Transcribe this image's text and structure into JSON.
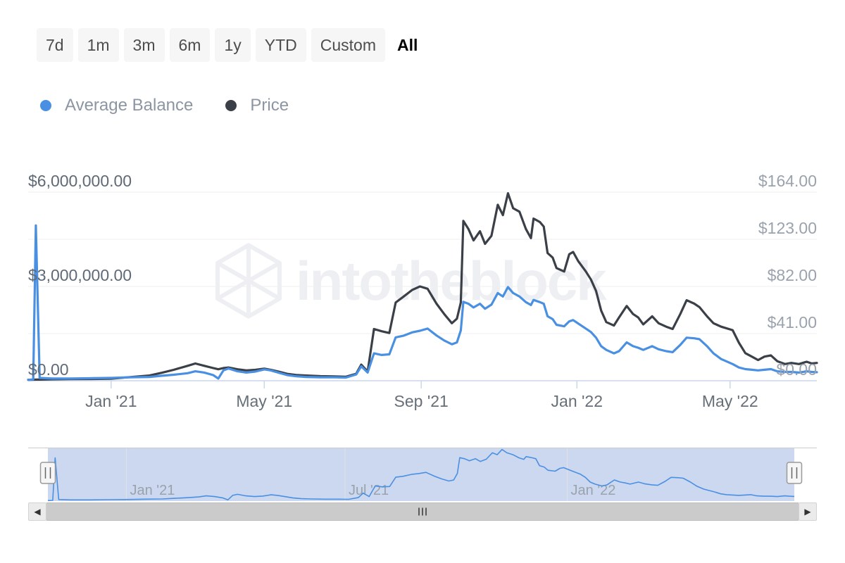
{
  "toolbar": {
    "ranges": [
      {
        "label": "7d",
        "active": false
      },
      {
        "label": "1m",
        "active": false
      },
      {
        "label": "3m",
        "active": false
      },
      {
        "label": "6m",
        "active": false
      },
      {
        "label": "1y",
        "active": false
      },
      {
        "label": "YTD",
        "active": false
      },
      {
        "label": "Custom",
        "active": false
      },
      {
        "label": "All",
        "active": true
      }
    ]
  },
  "legend": {
    "items": [
      {
        "label": "Average Balance",
        "color": "#4a90e2"
      },
      {
        "label": "Price",
        "color": "#3b4048"
      }
    ]
  },
  "watermark": {
    "text": "intotheblock"
  },
  "scrollbar": {
    "left_arrow": "◀",
    "right_arrow": "▶"
  },
  "colors": {
    "balance": "#4a90e2",
    "price": "#3b4048",
    "grid": "#efefef",
    "axis_line": "#ccd6eb",
    "x_label": "#666f78",
    "y_label_left": "#5f6a76",
    "y_label_right": "#9aa3ad",
    "nav_mask": "#ccd8f0",
    "nav_grid": "#e2e2e2",
    "nav_label": "#9aa2ab",
    "nav_outline": "#cccccc",
    "handle_fill": "#f6f6f6",
    "handle_stroke": "#999999",
    "handle_lines": "#666666",
    "watermark": "#edeff2"
  },
  "chart_data": {
    "type": "line",
    "title": "",
    "xlabel": "",
    "ylabel_left": "Average Balance",
    "ylabel_right": "Price",
    "grid": true,
    "legend_position": "top",
    "x_range": {
      "start": "2020-10-28",
      "end": "2022-07-08"
    },
    "x_ticks": [
      {
        "label": "Jan '21",
        "date": "2021-01-01"
      },
      {
        "label": "May '21",
        "date": "2021-05-01"
      },
      {
        "label": "Sep '21",
        "date": "2021-09-01"
      },
      {
        "label": "Jan '22",
        "date": "2022-01-01"
      },
      {
        "label": "May '22",
        "date": "2022-05-01"
      }
    ],
    "left_axis": {
      "min": 0,
      "max": 6000000,
      "gridline_values": [
        0,
        1500000,
        3000000,
        4500000,
        6000000
      ],
      "labels": [
        {
          "text": "$0.00",
          "value": 0
        },
        {
          "text": "$3,000,000.00",
          "value": 3000000
        },
        {
          "text": "$6,000,000.00",
          "value": 6000000
        }
      ]
    },
    "right_axis": {
      "min": 0,
      "max": 164,
      "labels": [
        {
          "text": "$0.00",
          "value": 0
        },
        {
          "text": "$41.00",
          "value": 41
        },
        {
          "text": "$82.00",
          "value": 82
        },
        {
          "text": "$123.00",
          "value": 123
        },
        {
          "text": "$164.00",
          "value": 164
        }
      ]
    },
    "series": [
      {
        "name": "Average Balance",
        "axis": "left",
        "color": "#4a90e2"
      },
      {
        "name": "Price",
        "axis": "right",
        "color": "#3b4048"
      }
    ],
    "points_format": [
      "date",
      "average_balance_usd",
      "price_usd"
    ],
    "points": [
      [
        "2020-10-28",
        30000,
        0.8
      ],
      [
        "2020-11-01",
        40000,
        0.9
      ],
      [
        "2020-11-03",
        4940000,
        1.0
      ],
      [
        "2020-11-06",
        90000,
        1.0
      ],
      [
        "2020-11-16",
        70000,
        1.2
      ],
      [
        "2020-11-30",
        70000,
        1.4
      ],
      [
        "2020-12-17",
        80000,
        1.5
      ],
      [
        "2021-01-01",
        90000,
        1.8
      ],
      [
        "2021-01-16",
        110000,
        3.2
      ],
      [
        "2021-01-31",
        120000,
        4.5
      ],
      [
        "2021-02-10",
        160000,
        7.0
      ],
      [
        "2021-02-19",
        190000,
        9.5
      ],
      [
        "2021-03-02",
        240000,
        13.0
      ],
      [
        "2021-03-08",
        300000,
        15.0
      ],
      [
        "2021-03-15",
        260000,
        13.0
      ],
      [
        "2021-03-22",
        180000,
        11.0
      ],
      [
        "2021-03-26",
        70000,
        10.0
      ],
      [
        "2021-03-30",
        330000,
        11.0
      ],
      [
        "2021-04-03",
        390000,
        11.5
      ],
      [
        "2021-04-10",
        300000,
        10.0
      ],
      [
        "2021-04-17",
        260000,
        9.0
      ],
      [
        "2021-04-24",
        290000,
        9.5
      ],
      [
        "2021-05-01",
        360000,
        10.5
      ],
      [
        "2021-05-06",
        330000,
        9.5
      ],
      [
        "2021-05-12",
        260000,
        8.0
      ],
      [
        "2021-05-19",
        180000,
        6.0
      ],
      [
        "2021-05-26",
        140000,
        5.0
      ],
      [
        "2021-06-03",
        120000,
        4.5
      ],
      [
        "2021-06-14",
        110000,
        4.0
      ],
      [
        "2021-06-25",
        110000,
        3.8
      ],
      [
        "2021-07-04",
        100000,
        3.5
      ],
      [
        "2021-07-12",
        200000,
        6.0
      ],
      [
        "2021-07-16",
        460000,
        14.0
      ],
      [
        "2021-07-21",
        260000,
        8.0
      ],
      [
        "2021-07-26",
        870000,
        45.0
      ],
      [
        "2021-08-01",
        820000,
        43.0
      ],
      [
        "2021-08-07",
        840000,
        41.5
      ],
      [
        "2021-08-12",
        1380000,
        68.0
      ],
      [
        "2021-08-18",
        1430000,
        73.0
      ],
      [
        "2021-08-25",
        1540000,
        79.0
      ],
      [
        "2021-08-31",
        1590000,
        82.0
      ],
      [
        "2021-09-06",
        1660000,
        80.0
      ],
      [
        "2021-09-13",
        1440000,
        67.0
      ],
      [
        "2021-09-19",
        1280000,
        58.0
      ],
      [
        "2021-09-25",
        1160000,
        50.0
      ],
      [
        "2021-09-29",
        1220000,
        54.0
      ],
      [
        "2021-10-02",
        1600000,
        68.0
      ],
      [
        "2021-10-04",
        2510000,
        139.0
      ],
      [
        "2021-10-08",
        2450000,
        132.0
      ],
      [
        "2021-10-12",
        2330000,
        122.0
      ],
      [
        "2021-10-17",
        2450000,
        130.0
      ],
      [
        "2021-10-21",
        2290000,
        119.0
      ],
      [
        "2021-10-26",
        2420000,
        126.0
      ],
      [
        "2021-10-31",
        2790000,
        153.0
      ],
      [
        "2021-11-04",
        2680000,
        144.0
      ],
      [
        "2021-11-08",
        2980000,
        163.0
      ],
      [
        "2021-11-12",
        2790000,
        150.0
      ],
      [
        "2021-11-17",
        2680000,
        147.0
      ],
      [
        "2021-11-22",
        2500000,
        132.0
      ],
      [
        "2021-11-26",
        2410000,
        124.0
      ],
      [
        "2021-11-28",
        2570000,
        141.0
      ],
      [
        "2021-12-03",
        2500000,
        138.0
      ],
      [
        "2021-12-06",
        2450000,
        134.0
      ],
      [
        "2021-12-09",
        2050000,
        111.0
      ],
      [
        "2021-12-13",
        1960000,
        107.0
      ],
      [
        "2021-12-16",
        1780000,
        98.0
      ],
      [
        "2021-12-22",
        1730000,
        95.0
      ],
      [
        "2021-12-26",
        1890000,
        110.0
      ],
      [
        "2021-12-29",
        1930000,
        112.0
      ],
      [
        "2022-01-02",
        1820000,
        104.0
      ],
      [
        "2022-01-08",
        1660000,
        95.0
      ],
      [
        "2022-01-12",
        1550000,
        88.0
      ],
      [
        "2022-01-16",
        1370000,
        78.0
      ],
      [
        "2022-01-20",
        1100000,
        61.0
      ],
      [
        "2022-01-24",
        980000,
        51.0
      ],
      [
        "2022-01-30",
        870000,
        48.0
      ],
      [
        "2022-02-03",
        940000,
        55.0
      ],
      [
        "2022-02-09",
        1220000,
        65.0
      ],
      [
        "2022-02-14",
        1100000,
        58.0
      ],
      [
        "2022-02-18",
        1050000,
        55.0
      ],
      [
        "2022-02-22",
        980000,
        49.0
      ],
      [
        "2022-03-01",
        1100000,
        56.0
      ],
      [
        "2022-03-06",
        1000000,
        50.0
      ],
      [
        "2022-03-12",
        940000,
        47.0
      ],
      [
        "2022-03-17",
        910000,
        45.0
      ],
      [
        "2022-03-23",
        1140000,
        58.0
      ],
      [
        "2022-03-28",
        1370000,
        70.0
      ],
      [
        "2022-04-03",
        1350000,
        67.0
      ],
      [
        "2022-04-07",
        1320000,
        64.0
      ],
      [
        "2022-04-13",
        1100000,
        56.0
      ],
      [
        "2022-04-18",
        870000,
        50.0
      ],
      [
        "2022-04-24",
        690000,
        47.0
      ],
      [
        "2022-05-03",
        530000,
        44.0
      ],
      [
        "2022-05-08",
        420000,
        33.0
      ],
      [
        "2022-05-13",
        370000,
        24.0
      ],
      [
        "2022-05-18",
        350000,
        21.0
      ],
      [
        "2022-05-23",
        330000,
        18.0
      ],
      [
        "2022-05-28",
        350000,
        21.0
      ],
      [
        "2022-06-02",
        370000,
        22.0
      ],
      [
        "2022-06-07",
        300000,
        17.0
      ],
      [
        "2022-06-13",
        280000,
        14.5
      ],
      [
        "2022-06-18",
        280000,
        15.5
      ],
      [
        "2022-06-24",
        260000,
        14.5
      ],
      [
        "2022-06-30",
        300000,
        16.5
      ],
      [
        "2022-07-04",
        280000,
        15.0
      ],
      [
        "2022-07-08",
        270000,
        15.5
      ]
    ],
    "navigator": {
      "series": "Average Balance",
      "x_ticks": [
        {
          "label": "Jan '21",
          "date": "2021-01-01"
        },
        {
          "label": "Jul '21",
          "date": "2021-07-01"
        },
        {
          "label": "Jan '22",
          "date": "2022-01-01"
        }
      ]
    }
  }
}
